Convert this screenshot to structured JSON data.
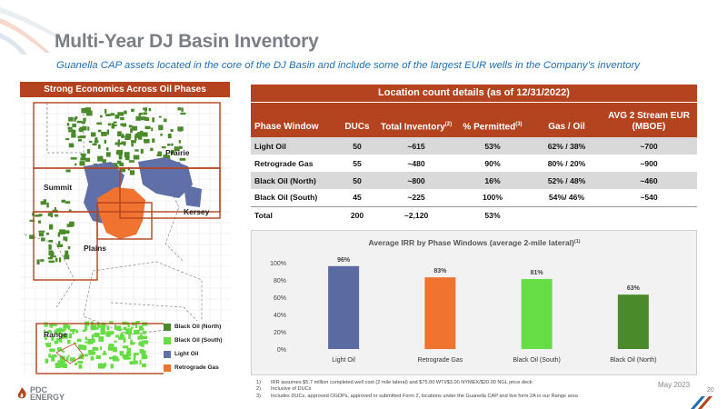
{
  "header": {
    "title": "Multi-Year DJ Basin Inventory",
    "subtitle": "Guanella CAP assets located in the core of the DJ Basin and include some of the largest EUR wells in the Company’s inventory"
  },
  "map": {
    "header": "Strong Economics Across Oil Phases",
    "labels": {
      "prairie": "Prairie",
      "summit": "Summit",
      "kersey": "Kersey",
      "plains": "Plains",
      "range": "Range"
    },
    "legend": [
      {
        "label": "Black Oil (North)",
        "color": "#4a8a2a"
      },
      {
        "label": "Black Oil (South)",
        "color": "#66dd44"
      },
      {
        "label": "Light Oil",
        "color": "#5f6fa8"
      },
      {
        "label": "Retrograde Gas",
        "color": "#f07430"
      }
    ]
  },
  "table": {
    "title": "Location count details (as of 12/31/2022)",
    "headers": {
      "phase": "Phase Window",
      "ducs": "DUCs",
      "inventory": "Total Inventory",
      "inventory_note": "(2)",
      "permitted": "% Permitted",
      "permitted_note": "(3)",
      "gas_oil": "Gas / Oil",
      "eur": "AVG 2 Stream EUR (MBOE)"
    },
    "rows": [
      {
        "phase": "Light Oil",
        "ducs": "50",
        "inventory": "~615",
        "permitted": "53%",
        "gas_oil": "62% / 38%",
        "eur": "~700"
      },
      {
        "phase": "Retrograde Gas",
        "ducs": "55",
        "inventory": "~480",
        "permitted": "90%",
        "gas_oil": "80% / 20%",
        "eur": "~900"
      },
      {
        "phase": "Black Oil (North)",
        "ducs": "50",
        "inventory": "~800",
        "permitted": "16%",
        "gas_oil": "52% / 48%",
        "eur": "~460"
      },
      {
        "phase": "Black Oil (South)",
        "ducs": "45",
        "inventory": "~225",
        "permitted": "100%",
        "gas_oil": "54%/ 46%",
        "eur": "~540"
      },
      {
        "phase": "Total",
        "ducs": "200",
        "inventory": "~2,120",
        "permitted": "53%",
        "gas_oil": "",
        "eur": ""
      }
    ]
  },
  "chart_data": {
    "type": "bar",
    "title": "Average IRR by Phase Windows (average 2-mile lateral)",
    "title_note": "(1)",
    "categories": [
      "Light Oil",
      "Retrograde Gas",
      "Black Oil (South)",
      "Black Oil (North)"
    ],
    "values": [
      96,
      83,
      81,
      63
    ],
    "value_labels": [
      "96%",
      "83%",
      "81%",
      "63%"
    ],
    "colors": [
      "#5b6aa0",
      "#f07430",
      "#66dd44",
      "#4a8a2a"
    ],
    "yticks": [
      "0%",
      "20%",
      "40%",
      "60%",
      "80%",
      "100%"
    ],
    "ylim": [
      0,
      100
    ],
    "xlabel": "",
    "ylabel": "",
    "grid": false
  },
  "footer": {
    "logo_line1": "PDC",
    "logo_line2": "ENERGY",
    "footnotes": [
      {
        "num": "1)",
        "text": "IRR assumes $5.7 million completed well cost (2 mile lateral) and $75.00 WTI/$3.00 NYMEX/$20.00 NGL price deck"
      },
      {
        "num": "2)",
        "text": "Inclusive of DUCs"
      },
      {
        "num": "3)",
        "text": "Includes DUCs, approved OGDPs, approved or submitted Form 2, locations under the Guanella CAP and live form 2A in our Range area"
      }
    ],
    "date": "May 2023",
    "page": "20"
  }
}
